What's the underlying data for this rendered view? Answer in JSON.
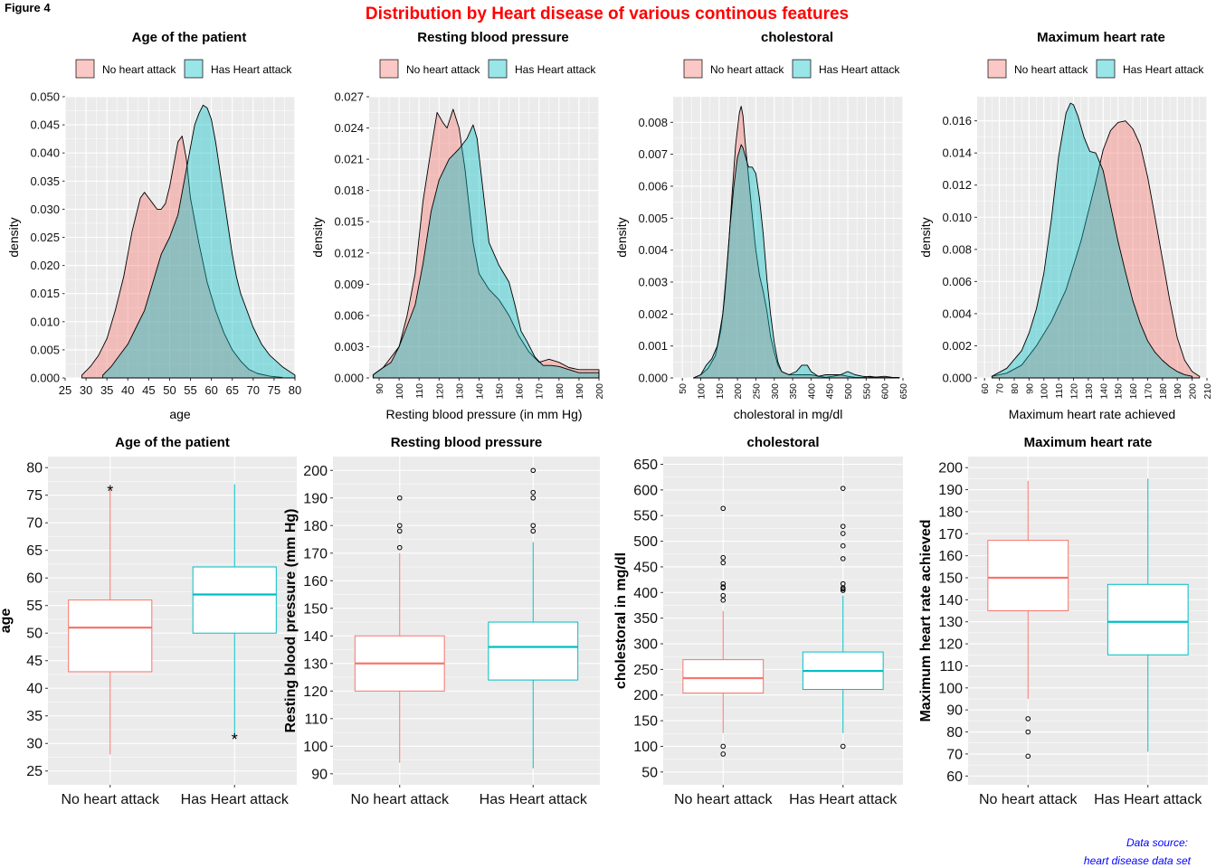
{
  "figure_label": "Figure 4",
  "suptitle": "Distribution by Heart disease of various continous features",
  "source_line1": "Data source:",
  "source_line2": "heart disease data set",
  "legend_labels": [
    "No heart attack",
    "Has Heart attack"
  ],
  "colors": {
    "no": "#F8766D",
    "has": "#00BFC4",
    "no_fill": "rgba(248,118,109,0.4)",
    "has_fill": "rgba(0,191,196,0.4)",
    "panel": "#EBEBEB",
    "grid": "#FFFFFF",
    "title_red": "#FF0000",
    "source_blue": "#0000FF"
  },
  "chart_data": [
    {
      "type": "area",
      "title": "Age of the patient",
      "xlabel": "age",
      "ylabel": "density",
      "xlim": [
        25,
        80
      ],
      "ylim": [
        0,
        0.05
      ],
      "xticks": [
        25,
        30,
        35,
        40,
        45,
        50,
        55,
        60,
        65,
        70,
        75,
        80
      ],
      "yticks": [
        0,
        0.005,
        0.01,
        0.015,
        0.02,
        0.025,
        0.03,
        0.035,
        0.04,
        0.045,
        0.05
      ],
      "y_decimals": 3,
      "rotate_x": false,
      "legend": "top",
      "series": [
        {
          "name": "No heart attack",
          "x": [
            29,
            31,
            33,
            35,
            37,
            39,
            40,
            41,
            42,
            43,
            44,
            45,
            46,
            47,
            48,
            49,
            50,
            51,
            52,
            53,
            54,
            55,
            57,
            59,
            61,
            63,
            65,
            67,
            69,
            71,
            74,
            77
          ],
          "y": [
            0.0005,
            0.002,
            0.004,
            0.007,
            0.012,
            0.018,
            0.022,
            0.026,
            0.029,
            0.032,
            0.033,
            0.032,
            0.031,
            0.03,
            0.03,
            0.031,
            0.034,
            0.038,
            0.042,
            0.043,
            0.039,
            0.032,
            0.024,
            0.017,
            0.012,
            0.008,
            0.005,
            0.003,
            0.0015,
            0.0008,
            0.0003,
            0.0001
          ]
        },
        {
          "name": "Has Heart attack",
          "x": [
            34,
            36,
            38,
            40,
            42,
            44,
            46,
            48,
            50,
            52,
            54,
            55,
            56,
            57,
            58,
            59,
            60,
            61,
            62,
            63,
            64,
            65,
            66,
            67,
            68,
            70,
            72,
            74,
            77,
            80
          ],
          "y": [
            0.0005,
            0.002,
            0.004,
            0.006,
            0.009,
            0.012,
            0.017,
            0.022,
            0.025,
            0.029,
            0.037,
            0.041,
            0.045,
            0.047,
            0.0485,
            0.048,
            0.046,
            0.042,
            0.037,
            0.032,
            0.027,
            0.022,
            0.018,
            0.015,
            0.013,
            0.009,
            0.006,
            0.004,
            0.002,
            0.0005
          ]
        }
      ]
    },
    {
      "type": "area",
      "title": "Resting blood pressure",
      "xlabel": "Resting blood pressure (in mm Hg)",
      "ylabel": "density",
      "xlim": [
        85,
        200
      ],
      "ylim": [
        0,
        0.027
      ],
      "xticks": [
        90,
        100,
        110,
        120,
        130,
        140,
        150,
        160,
        170,
        180,
        190,
        200
      ],
      "yticks": [
        0,
        0.003,
        0.006,
        0.009,
        0.012,
        0.015,
        0.018,
        0.021,
        0.024,
        0.027
      ],
      "y_decimals": 3,
      "rotate_x": true,
      "legend": "top",
      "series": [
        {
          "name": "No heart attack",
          "x": [
            87,
            92,
            96,
            100,
            104,
            108,
            112,
            116,
            119,
            122,
            124,
            127,
            130,
            133,
            137,
            140,
            145,
            150,
            155,
            160,
            165,
            170,
            175,
            180,
            185,
            190,
            195,
            200
          ],
          "y": [
            0.0003,
            0.001,
            0.002,
            0.003,
            0.006,
            0.01,
            0.017,
            0.022,
            0.0255,
            0.0245,
            0.024,
            0.0258,
            0.024,
            0.02,
            0.013,
            0.01,
            0.0085,
            0.0075,
            0.006,
            0.004,
            0.0025,
            0.0015,
            0.0018,
            0.0015,
            0.001,
            0.0008,
            0.0008,
            0.0008
          ]
        },
        {
          "name": "Has Heart attack",
          "x": [
            87,
            92,
            96,
            100,
            104,
            108,
            112,
            116,
            120,
            125,
            130,
            134,
            137,
            139,
            142,
            145,
            150,
            155,
            158,
            161,
            164,
            168,
            172,
            176,
            180,
            185,
            190,
            195,
            200
          ],
          "y": [
            0.0003,
            0.001,
            0.0015,
            0.003,
            0.005,
            0.007,
            0.011,
            0.016,
            0.019,
            0.021,
            0.022,
            0.023,
            0.0243,
            0.023,
            0.018,
            0.013,
            0.0108,
            0.0092,
            0.007,
            0.0045,
            0.0035,
            0.002,
            0.0012,
            0.0012,
            0.0011,
            0.0008,
            0.0005,
            0.0005,
            0.0005
          ]
        }
      ]
    },
    {
      "type": "area",
      "title": "cholestoral",
      "xlabel": "cholestoral in mg/dl",
      "ylabel": "density",
      "xlim": [
        25,
        650
      ],
      "ylim": [
        0,
        0.0088
      ],
      "xticks": [
        50,
        100,
        150,
        200,
        250,
        300,
        350,
        400,
        450,
        500,
        550,
        600,
        650
      ],
      "yticks": [
        0,
        0.001,
        0.002,
        0.003,
        0.004,
        0.005,
        0.006,
        0.007,
        0.008
      ],
      "y_decimals": 3,
      "rotate_x": true,
      "legend": "top",
      "series": [
        {
          "name": "No heart attack",
          "x": [
            80,
            100,
            120,
            140,
            155,
            165,
            175,
            185,
            195,
            205,
            210,
            215,
            220,
            230,
            240,
            250,
            260,
            270,
            280,
            290,
            300,
            310,
            320,
            340,
            360,
            380,
            400,
            420,
            440,
            460,
            480,
            500,
            520,
            540,
            560,
            580,
            600,
            620,
            640
          ],
          "y": [
            0,
            0.0001,
            0.0003,
            0.0007,
            0.0015,
            0.0025,
            0.004,
            0.0057,
            0.0073,
            0.0083,
            0.0085,
            0.0082,
            0.0075,
            0.0063,
            0.0051,
            0.004,
            0.0032,
            0.0027,
            0.0021,
            0.0013,
            0.0008,
            0.0004,
            0.0002,
            0.0001,
            0.0001,
            0.0001,
            0.0001,
            5e-05,
            2e-05,
            5e-05,
            0.0001,
            5e-05,
            2e-05,
            1e-05,
            5e-05,
            2e-05,
            1e-05,
            1e-05,
            1e-05
          ]
        },
        {
          "name": "Has Heart attack",
          "x": [
            80,
            100,
            115,
            130,
            145,
            160,
            170,
            180,
            190,
            200,
            210,
            215,
            220,
            230,
            240,
            250,
            260,
            270,
            280,
            290,
            300,
            310,
            320,
            340,
            360,
            375,
            390,
            400,
            420,
            440,
            460,
            480,
            500,
            520,
            540,
            560,
            580,
            600,
            620,
            640
          ],
          "y": [
            0,
            0.0001,
            0.0004,
            0.0006,
            0.001,
            0.002,
            0.0033,
            0.0048,
            0.006,
            0.0069,
            0.0073,
            0.0072,
            0.007,
            0.0066,
            0.0066,
            0.0064,
            0.0056,
            0.0045,
            0.0031,
            0.002,
            0.0011,
            0.0005,
            0.0002,
            0.0001,
            0.0002,
            0.0004,
            0.0004,
            0.0002,
            5e-05,
            0.0001,
            0.0001,
            0.0001,
            0.0002,
            0.0001,
            5e-05,
            3e-05,
            3e-05,
            5e-05,
            2e-05,
            1e-05
          ]
        }
      ]
    },
    {
      "type": "area",
      "title": "Maximum heart rate",
      "xlabel": "Maximum heart rate achieved",
      "ylabel": "density",
      "xlim": [
        55,
        210
      ],
      "ylim": [
        0,
        0.0175
      ],
      "xticks": [
        60,
        70,
        80,
        90,
        100,
        110,
        120,
        130,
        140,
        150,
        160,
        170,
        180,
        190,
        200,
        210
      ],
      "yticks": [
        0,
        0.002,
        0.004,
        0.006,
        0.008,
        0.01,
        0.012,
        0.014,
        0.016
      ],
      "y_decimals": 3,
      "rotate_x": true,
      "legend": "top",
      "series": [
        {
          "name": "No heart attack",
          "x": [
            65,
            75,
            85,
            95,
            105,
            115,
            125,
            135,
            140,
            145,
            150,
            155,
            160,
            165,
            170,
            175,
            180,
            185,
            190,
            195,
            200,
            205
          ],
          "y": [
            0.0001,
            0.0003,
            0.0008,
            0.002,
            0.0035,
            0.0055,
            0.0085,
            0.0122,
            0.0142,
            0.0154,
            0.0159,
            0.016,
            0.0155,
            0.0145,
            0.0125,
            0.01,
            0.0074,
            0.0048,
            0.0025,
            0.0011,
            0.0004,
            0.0001
          ]
        },
        {
          "name": "Has Heart attack",
          "x": [
            65,
            75,
            85,
            90,
            95,
            100,
            105,
            110,
            115,
            118,
            120,
            123,
            127,
            131,
            135,
            140,
            145,
            150,
            155,
            160,
            165,
            170,
            175,
            180,
            185,
            190,
            195,
            200
          ],
          "y": [
            0.0001,
            0.0006,
            0.0017,
            0.0028,
            0.0043,
            0.0065,
            0.0098,
            0.0138,
            0.0165,
            0.0171,
            0.017,
            0.0163,
            0.015,
            0.0141,
            0.014,
            0.0129,
            0.0107,
            0.0085,
            0.0066,
            0.0048,
            0.0034,
            0.0023,
            0.0016,
            0.0011,
            0.0007,
            0.0004,
            0.0002,
            0.0001
          ]
        }
      ]
    },
    {
      "type": "box",
      "title": "Age of the patient",
      "ylabel": "age",
      "categories": [
        "No heart attack",
        "Has Heart attack"
      ],
      "ylim": [
        22.5,
        82
      ],
      "yticks": [
        25,
        30,
        35,
        40,
        45,
        50,
        55,
        60,
        65,
        70,
        75,
        80
      ],
      "outlier_shape": "asterisk",
      "boxes": [
        {
          "q1": 43,
          "median": 51,
          "q3": 56,
          "lower": 28,
          "upper": 76,
          "outliers": [
            76
          ]
        },
        {
          "q1": 50,
          "median": 57,
          "q3": 62,
          "lower": 31,
          "upper": 77,
          "outliers": [
            31
          ]
        }
      ]
    },
    {
      "type": "box",
      "title": "Resting blood pressure",
      "ylabel": "Resting blood pressure (mm Hg)",
      "categories": [
        "No heart attack",
        "Has Heart attack"
      ],
      "ylim": [
        86,
        205
      ],
      "yticks": [
        90,
        100,
        110,
        120,
        130,
        140,
        150,
        160,
        170,
        180,
        190,
        200
      ],
      "outlier_shape": "circle",
      "boxes": [
        {
          "q1": 120,
          "median": 130,
          "q3": 140,
          "lower": 94,
          "upper": 170,
          "outliers": [
            172,
            178,
            180,
            190
          ]
        },
        {
          "q1": 124,
          "median": 136,
          "q3": 145,
          "lower": 92,
          "upper": 174,
          "outliers": [
            178,
            180,
            190,
            192,
            200
          ]
        }
      ]
    },
    {
      "type": "box",
      "title": "cholestoral",
      "ylabel": "cholestoral in mg/dl",
      "categories": [
        "No heart attack",
        "Has Heart attack"
      ],
      "ylim": [
        25,
        665
      ],
      "yticks": [
        50,
        100,
        150,
        200,
        250,
        300,
        350,
        400,
        450,
        500,
        550,
        600,
        650
      ],
      "outlier_shape": "circle",
      "boxes": [
        {
          "q1": 204,
          "median": 233,
          "q3": 269,
          "lower": 126,
          "upper": 364,
          "outliers": [
            85,
            100,
            385,
            394,
            409,
            411,
            417,
            458,
            468,
            564
          ]
        },
        {
          "q1": 211,
          "median": 247,
          "q3": 284,
          "lower": 126,
          "upper": 394,
          "outliers": [
            100,
            404,
            407,
            409,
            417,
            466,
            491,
            515,
            529,
            603
          ]
        }
      ]
    },
    {
      "type": "box",
      "title": "Maximum heart rate",
      "ylabel": "Maximum heart rate achieved",
      "categories": [
        "No heart attack",
        "Has Heart attack"
      ],
      "ylim": [
        56,
        205
      ],
      "yticks": [
        60,
        70,
        80,
        90,
        100,
        110,
        120,
        130,
        140,
        150,
        160,
        170,
        180,
        190,
        200
      ],
      "outlier_shape": "circle",
      "boxes": [
        {
          "q1": 135,
          "median": 150,
          "q3": 167,
          "lower": 95,
          "upper": 194,
          "outliers": [
            69,
            80,
            86
          ]
        },
        {
          "q1": 115,
          "median": 130,
          "q3": 147,
          "lower": 71,
          "upper": 195,
          "outliers": []
        }
      ]
    }
  ]
}
